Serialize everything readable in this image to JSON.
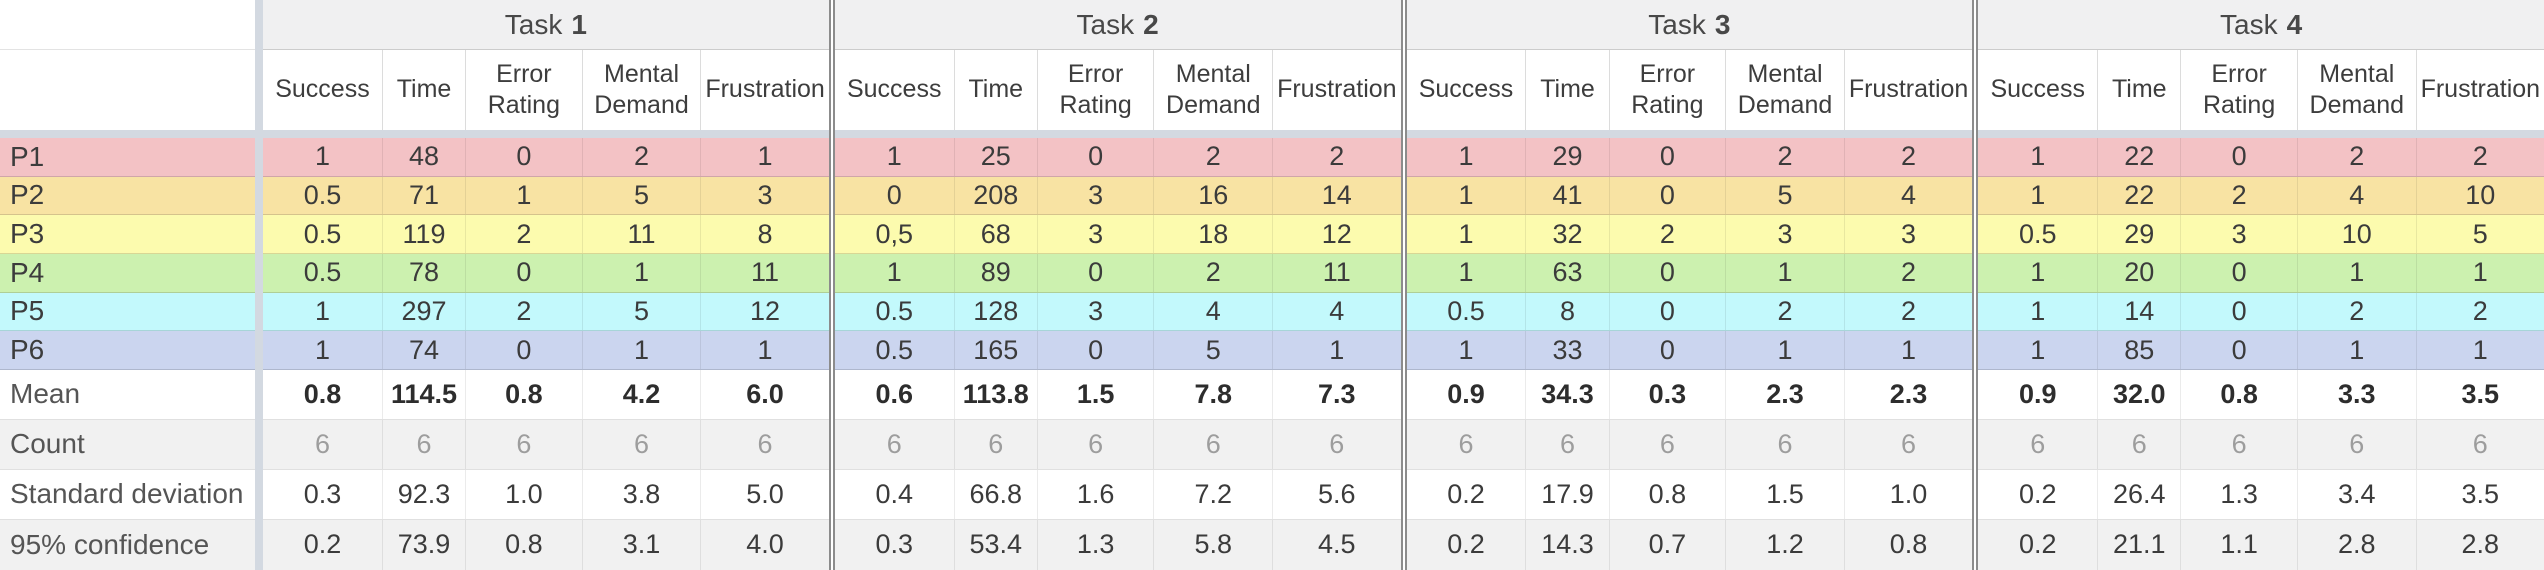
{
  "sheet": {
    "tasks": [
      {
        "prefix": "Task",
        "number": "1"
      },
      {
        "prefix": "Task",
        "number": "2"
      },
      {
        "prefix": "Task",
        "number": "3"
      },
      {
        "prefix": "Task",
        "number": "4"
      }
    ],
    "columns": [
      "Success",
      "Time",
      "Error Rating",
      "Mental Demand",
      "Frustration"
    ],
    "rows": [
      {
        "label": "P1",
        "type": "participant",
        "color": "p1",
        "cells": [
          [
            "1",
            "48",
            "0",
            "2",
            "1"
          ],
          [
            "1",
            "25",
            "0",
            "2",
            "2"
          ],
          [
            "1",
            "29",
            "0",
            "2",
            "2"
          ],
          [
            "1",
            "22",
            "0",
            "2",
            "2"
          ]
        ]
      },
      {
        "label": "P2",
        "type": "participant",
        "color": "p2",
        "cells": [
          [
            "0.5",
            "71",
            "1",
            "5",
            "3"
          ],
          [
            "0",
            "208",
            "3",
            "16",
            "14"
          ],
          [
            "1",
            "41",
            "0",
            "5",
            "4"
          ],
          [
            "1",
            "22",
            "2",
            "4",
            "10"
          ]
        ]
      },
      {
        "label": "P3",
        "type": "participant",
        "color": "p3",
        "cells": [
          [
            "0.5",
            "119",
            "2",
            "11",
            "8"
          ],
          [
            "0,5",
            "68",
            "3",
            "18",
            "12"
          ],
          [
            "1",
            "32",
            "2",
            "3",
            "3"
          ],
          [
            "0.5",
            "29",
            "3",
            "10",
            "5"
          ]
        ]
      },
      {
        "label": "P4",
        "type": "participant",
        "color": "p4",
        "cells": [
          [
            "0.5",
            "78",
            "0",
            "1",
            "11"
          ],
          [
            "1",
            "89",
            "0",
            "2",
            "11"
          ],
          [
            "1",
            "63",
            "0",
            "1",
            "2"
          ],
          [
            "1",
            "20",
            "0",
            "1",
            "1"
          ]
        ]
      },
      {
        "label": "P5",
        "type": "participant",
        "color": "p5",
        "cells": [
          [
            "1",
            "297",
            "2",
            "5",
            "12"
          ],
          [
            "0.5",
            "128",
            "3",
            "4",
            "4"
          ],
          [
            "0.5",
            "8",
            "0",
            "2",
            "2"
          ],
          [
            "1",
            "14",
            "0",
            "2",
            "2"
          ]
        ]
      },
      {
        "label": "P6",
        "type": "participant",
        "color": "p6",
        "cells": [
          [
            "1",
            "74",
            "0",
            "1",
            "1"
          ],
          [
            "0.5",
            "165",
            "0",
            "5",
            "1"
          ],
          [
            "1",
            "33",
            "0",
            "1",
            "1"
          ],
          [
            "1",
            "85",
            "0",
            "1",
            "1"
          ]
        ]
      },
      {
        "label": "Mean",
        "type": "mean",
        "cells": [
          [
            "0.8",
            "114.5",
            "0.8",
            "4.2",
            "6.0"
          ],
          [
            "0.6",
            "113.8",
            "1.5",
            "7.8",
            "7.3"
          ],
          [
            "0.9",
            "34.3",
            "0.3",
            "2.3",
            "2.3"
          ],
          [
            "0.9",
            "32.0",
            "0.8",
            "3.3",
            "3.5"
          ]
        ]
      },
      {
        "label": "Count",
        "type": "count",
        "cells": [
          [
            "6",
            "6",
            "6",
            "6",
            "6"
          ],
          [
            "6",
            "6",
            "6",
            "6",
            "6"
          ],
          [
            "6",
            "6",
            "6",
            "6",
            "6"
          ],
          [
            "6",
            "6",
            "6",
            "6",
            "6"
          ]
        ]
      },
      {
        "label": "Standard deviation",
        "type": "stddev",
        "cells": [
          [
            "0.3",
            "92.3",
            "1.0",
            "3.8",
            "5.0"
          ],
          [
            "0.4",
            "66.8",
            "1.6",
            "7.2",
            "5.6"
          ],
          [
            "0.2",
            "17.9",
            "0.8",
            "1.5",
            "1.0"
          ],
          [
            "0.2",
            "26.4",
            "1.3",
            "3.4",
            "3.5"
          ]
        ]
      },
      {
        "label": "95% confidence",
        "type": "confidence",
        "cells": [
          [
            "0.2",
            "73.9",
            "0.8",
            "3.1",
            "4.0"
          ],
          [
            "0.3",
            "53.4",
            "1.3",
            "5.8",
            "4.5"
          ],
          [
            "0.2",
            "14.3",
            "0.7",
            "1.2",
            "0.8"
          ],
          [
            "0.2",
            "21.1",
            "1.1",
            "2.8",
            "2.8"
          ]
        ]
      }
    ],
    "colors": {
      "p1": "#f3c2c5",
      "p2": "#f8e3a3",
      "p3": "#fcfbae",
      "p4": "#ccf1af",
      "p5": "#c3f9fc",
      "p6": "#cbd5ef",
      "pane_separator": "#d3d9e1",
      "task_strip": "#f0f0f1",
      "alt_row": "#f1f1f1",
      "group_divider": "#8c8c8c"
    }
  }
}
